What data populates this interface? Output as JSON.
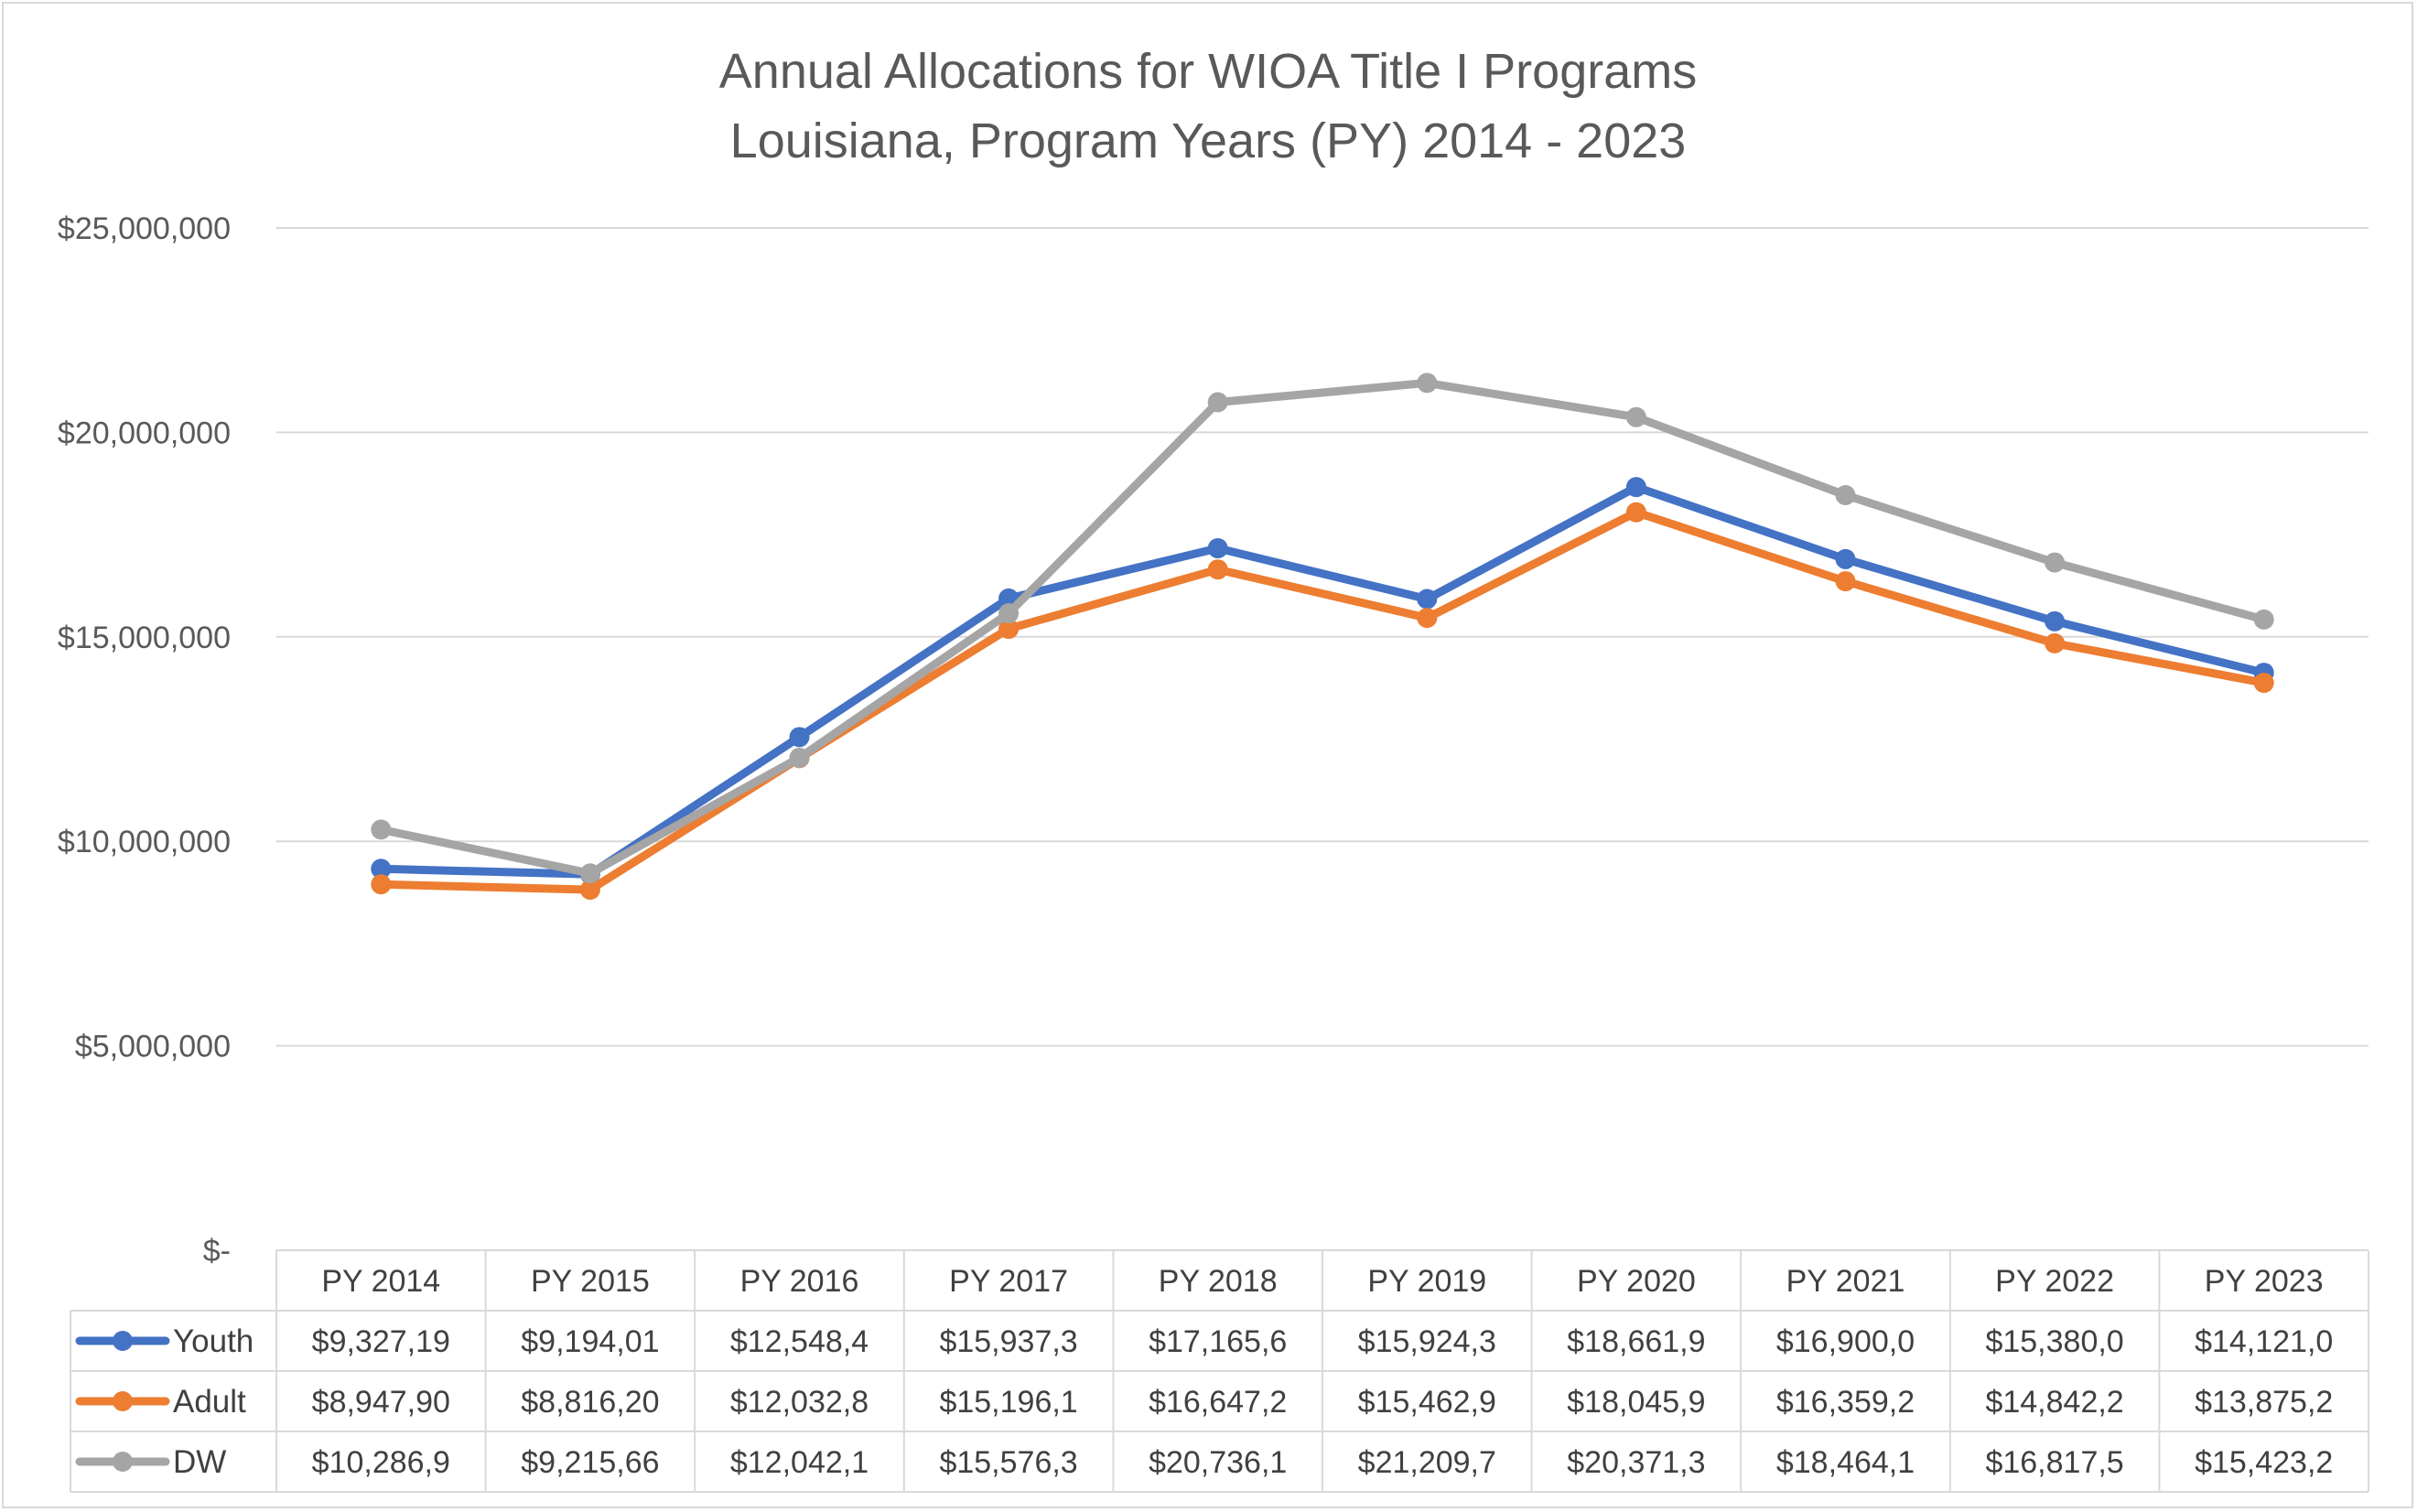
{
  "chart_data": {
    "type": "line",
    "title_lines": [
      "Annual Allocations for WIOA Title I Programs",
      "Louisiana, Program Years (PY) 2014 - 2023"
    ],
    "xlabel": "",
    "ylabel": "",
    "ylim": [
      0,
      25000000
    ],
    "y_ticks": [
      {
        "value": 0,
        "label": "$-"
      },
      {
        "value": 5000000,
        "label": "$5,000,000"
      },
      {
        "value": 10000000,
        "label": "$10,000,000"
      },
      {
        "value": 15000000,
        "label": "$15,000,000"
      },
      {
        "value": 20000000,
        "label": "$20,000,000"
      },
      {
        "value": 25000000,
        "label": "$25,000,000"
      }
    ],
    "categories": [
      "PY 2014",
      "PY 2015",
      "PY 2016",
      "PY 2017",
      "PY 2018",
      "PY 2019",
      "PY 2020",
      "PY 2021",
      "PY 2022",
      "PY 2023"
    ],
    "grid": true,
    "legend": "data-table",
    "series": [
      {
        "name": "Youth",
        "color": "#4472c4",
        "values": [
          9327190,
          9194010,
          12548400,
          15937300,
          17165600,
          15924300,
          18661900,
          16900000,
          15380000,
          14121000
        ],
        "table_labels": [
          "$9,327,19",
          "$9,194,01",
          "$12,548,4",
          "$15,937,3",
          "$17,165,6",
          "$15,924,3",
          "$18,661,9",
          "$16,900,0",
          "$15,380,0",
          "$14,121,0"
        ]
      },
      {
        "name": "Adult",
        "color": "#ed7d31",
        "values": [
          8947900,
          8816200,
          12032800,
          15196100,
          16647200,
          15462900,
          18045900,
          16359200,
          14842200,
          13875200
        ],
        "table_labels": [
          "$8,947,90",
          "$8,816,20",
          "$12,032,8",
          "$15,196,1",
          "$16,647,2",
          "$15,462,9",
          "$18,045,9",
          "$16,359,2",
          "$14,842,2",
          "$13,875,2"
        ]
      },
      {
        "name": "DW",
        "color": "#a5a5a5",
        "values": [
          10286900,
          9215660,
          12042100,
          15576300,
          20736100,
          21209700,
          20371300,
          18464100,
          16817500,
          15423200
        ],
        "table_labels": [
          "$10,286,9",
          "$9,215,66",
          "$12,042,1",
          "$15,576,3",
          "$20,736,1",
          "$21,209,7",
          "$20,371,3",
          "$18,464,1",
          "$16,817,5",
          "$15,423,2"
        ]
      }
    ],
    "colors": {
      "gridline": "#d9d9d9",
      "table_border": "#d9d9d9",
      "text": "#595959"
    }
  }
}
